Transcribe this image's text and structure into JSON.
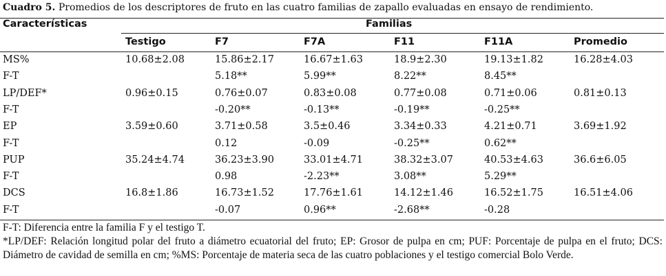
{
  "caption": {
    "label": "Cuadro 5.",
    "text": " Promedios de los descriptores de fruto en las cuatro familias de zapallo evaluadas en ensayo de rendimiento."
  },
  "table": {
    "header_left": "Características",
    "header_group": "Familias",
    "columns": [
      "Testigo",
      "F7",
      "F7A",
      "F11",
      "F11A",
      "Promedio"
    ],
    "rows": [
      {
        "label": "MS%",
        "values": [
          "10.68±2.08",
          "15.86±2.17",
          "16.67±1.63",
          "18.9±2.30",
          "19.13±1.82",
          "16.28±4.03"
        ]
      },
      {
        "label": "F-T",
        "values": [
          "",
          "5.18**",
          "5.99**",
          "8.22**",
          "8.45**",
          ""
        ]
      },
      {
        "label": "LP/DEF*",
        "values": [
          "0.96±0.15",
          "0.76±0.07",
          "0.83±0.08",
          "0.77±0.08",
          "0.71±0.06",
          "0.81±0.13"
        ]
      },
      {
        "label": "F-T",
        "values": [
          "",
          "-0.20**",
          "-0.13**",
          "-0.19**",
          "-0.25**",
          ""
        ]
      },
      {
        "label": "EP",
        "values": [
          "3.59±0.60",
          "3.71±0.58",
          "3.5±0.46",
          "3.34±0.33",
          "4.21±0.71",
          "3.69±1.92"
        ]
      },
      {
        "label": "F-T",
        "values": [
          "",
          "0.12",
          "-0.09",
          "-0.25**",
          "0.62**",
          ""
        ]
      },
      {
        "label": "PUP",
        "values": [
          "35.24±4.74",
          "36.23±3.90",
          "33.01±4.71",
          "38.32±3.07",
          "40.53±4.63",
          "36.6±6.05"
        ]
      },
      {
        "label": "F-T",
        "values": [
          "",
          "0.98",
          "-2.23**",
          "3.08**",
          "5.29**",
          ""
        ]
      },
      {
        "label": "DCS",
        "values": [
          "16.8±1.86",
          "16.73±1.52",
          "17.76±1.61",
          "14.12±1.46",
          "16.52±1.75",
          "16.51±4.06"
        ]
      },
      {
        "label": "F-T",
        "values": [
          "",
          "-0.07",
          "0.96**",
          "-2.68**",
          "-0.28",
          ""
        ]
      }
    ]
  },
  "footnotes": [
    "F-T: Diferencia entre la familia F y el testigo T.",
    "*LP/DEF: Relación longitud polar del fruto a diámetro ecuatorial del fruto; EP: Grosor de pulpa en cm; PUF: Porcentaje de pulpa en el fruto; DCS: Diámetro de cavidad de semilla en cm; %MS: Porcentaje de materia seca de las cuatro poblaciones y el testigo comercial Bolo Verde."
  ]
}
